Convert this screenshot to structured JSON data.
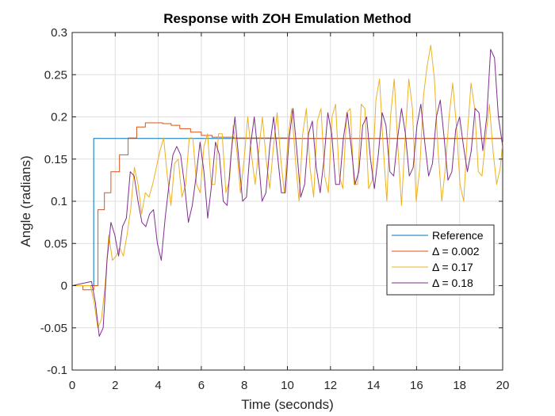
{
  "chart_data": {
    "type": "line",
    "title": "Response with ZOH Emulation Method",
    "xlabel": "Time (seconds)",
    "ylabel": "Angle (radians)",
    "xlim": [
      0,
      20
    ],
    "ylim": [
      -0.1,
      0.3
    ],
    "xticks": [
      0,
      2,
      4,
      6,
      8,
      10,
      12,
      14,
      16,
      18,
      20
    ],
    "yticks": [
      -0.1,
      -0.05,
      0,
      0.05,
      0.1,
      0.15,
      0.2,
      0.25,
      0.3
    ],
    "grid": true,
    "legend_position": "lower-right",
    "series": [
      {
        "name": "Reference",
        "color": "#0072BD",
        "step": true,
        "points": [
          [
            0,
            0
          ],
          [
            1,
            0
          ],
          [
            1,
            0.1745
          ],
          [
            20,
            0.1745
          ]
        ]
      },
      {
        "name": "Δ = 0.002",
        "color": "#D95319",
        "step": true,
        "points": [
          [
            0,
            0
          ],
          [
            0.5,
            -0.005
          ],
          [
            1.0,
            0.0
          ],
          [
            1.2,
            0.09
          ],
          [
            1.5,
            0.11
          ],
          [
            1.8,
            0.135
          ],
          [
            2.2,
            0.155
          ],
          [
            2.6,
            0.175
          ],
          [
            3.0,
            0.188
          ],
          [
            3.4,
            0.193
          ],
          [
            3.8,
            0.193
          ],
          [
            4.2,
            0.192
          ],
          [
            4.6,
            0.19
          ],
          [
            5.0,
            0.186
          ],
          [
            5.5,
            0.182
          ],
          [
            6.0,
            0.178
          ],
          [
            6.5,
            0.176
          ],
          [
            7.5,
            0.175
          ],
          [
            10,
            0.1745
          ],
          [
            20,
            0.1745
          ]
        ]
      },
      {
        "name": "Δ = 0.17",
        "color": "#EDB120",
        "step": false,
        "points": [
          [
            0,
            0
          ],
          [
            0.85,
            0.0
          ],
          [
            1.02,
            -0.02
          ],
          [
            1.19,
            -0.05
          ],
          [
            1.36,
            -0.04
          ],
          [
            1.53,
            0.0
          ],
          [
            1.7,
            0.06
          ],
          [
            1.87,
            0.03
          ],
          [
            2.04,
            0.035
          ],
          [
            2.21,
            0.045
          ],
          [
            2.38,
            0.035
          ],
          [
            2.55,
            0.06
          ],
          [
            2.72,
            0.09
          ],
          [
            2.89,
            0.14
          ],
          [
            3.06,
            0.12
          ],
          [
            3.23,
            0.085
          ],
          [
            3.4,
            0.11
          ],
          [
            3.57,
            0.105
          ],
          [
            3.74,
            0.12
          ],
          [
            3.91,
            0.14
          ],
          [
            4.08,
            0.16
          ],
          [
            4.25,
            0.175
          ],
          [
            4.42,
            0.13
          ],
          [
            4.59,
            0.095
          ],
          [
            4.76,
            0.145
          ],
          [
            4.93,
            0.15
          ],
          [
            5.1,
            0.105
          ],
          [
            5.27,
            0.12
          ],
          [
            5.44,
            0.175
          ],
          [
            5.61,
            0.175
          ],
          [
            5.78,
            0.12
          ],
          [
            5.95,
            0.11
          ],
          [
            6.12,
            0.165
          ],
          [
            6.29,
            0.18
          ],
          [
            6.46,
            0.12
          ],
          [
            6.63,
            0.12
          ],
          [
            6.8,
            0.18
          ],
          [
            6.97,
            0.18
          ],
          [
            7.14,
            0.11
          ],
          [
            7.31,
            0.125
          ],
          [
            7.48,
            0.19
          ],
          [
            7.65,
            0.16
          ],
          [
            7.82,
            0.11
          ],
          [
            7.99,
            0.15
          ],
          [
            8.16,
            0.2
          ],
          [
            8.33,
            0.155
          ],
          [
            8.5,
            0.12
          ],
          [
            8.67,
            0.16
          ],
          [
            8.84,
            0.2
          ],
          [
            9.01,
            0.15
          ],
          [
            9.18,
            0.115
          ],
          [
            9.35,
            0.165
          ],
          [
            9.52,
            0.205
          ],
          [
            9.69,
            0.15
          ],
          [
            9.86,
            0.11
          ],
          [
            10.03,
            0.175
          ],
          [
            10.2,
            0.21
          ],
          [
            10.37,
            0.15
          ],
          [
            10.54,
            0.1
          ],
          [
            10.71,
            0.18
          ],
          [
            10.88,
            0.21
          ],
          [
            11.05,
            0.14
          ],
          [
            11.22,
            0.105
          ],
          [
            11.39,
            0.195
          ],
          [
            11.56,
            0.21
          ],
          [
            11.73,
            0.13
          ],
          [
            11.9,
            0.11
          ],
          [
            12.07,
            0.2
          ],
          [
            12.24,
            0.215
          ],
          [
            12.41,
            0.13
          ],
          [
            12.58,
            0.115
          ],
          [
            12.75,
            0.205
          ],
          [
            12.92,
            0.21
          ],
          [
            13.09,
            0.12
          ],
          [
            13.26,
            0.12
          ],
          [
            13.43,
            0.215
          ],
          [
            13.6,
            0.21
          ],
          [
            13.77,
            0.115
          ],
          [
            13.94,
            0.125
          ],
          [
            14.11,
            0.22
          ],
          [
            14.28,
            0.245
          ],
          [
            14.45,
            0.165
          ],
          [
            14.62,
            0.1
          ],
          [
            14.79,
            0.2
          ],
          [
            14.96,
            0.245
          ],
          [
            15.13,
            0.165
          ],
          [
            15.3,
            0.095
          ],
          [
            15.47,
            0.175
          ],
          [
            15.64,
            0.245
          ],
          [
            15.81,
            0.21
          ],
          [
            15.98,
            0.1
          ],
          [
            16.15,
            0.14
          ],
          [
            16.32,
            0.225
          ],
          [
            16.49,
            0.26
          ],
          [
            16.66,
            0.285
          ],
          [
            16.83,
            0.245
          ],
          [
            17.0,
            0.16
          ],
          [
            17.17,
            0.1
          ],
          [
            17.34,
            0.14
          ],
          [
            17.51,
            0.2
          ],
          [
            17.68,
            0.24
          ],
          [
            17.85,
            0.19
          ],
          [
            18.02,
            0.12
          ],
          [
            18.19,
            0.1
          ],
          [
            18.36,
            0.18
          ],
          [
            18.53,
            0.24
          ],
          [
            18.7,
            0.21
          ],
          [
            18.87,
            0.135
          ],
          [
            19.04,
            0.13
          ],
          [
            19.21,
            0.175
          ],
          [
            19.38,
            0.215
          ],
          [
            19.55,
            0.16
          ],
          [
            19.72,
            0.12
          ],
          [
            19.89,
            0.14
          ],
          [
            20,
            0.17
          ]
        ]
      },
      {
        "name": "Δ = 0.18",
        "color": "#7E2F8E",
        "step": false,
        "points": [
          [
            0,
            0
          ],
          [
            0.9,
            0.005
          ],
          [
            1.08,
            -0.02
          ],
          [
            1.26,
            -0.06
          ],
          [
            1.44,
            -0.05
          ],
          [
            1.62,
            0.03
          ],
          [
            1.8,
            0.075
          ],
          [
            1.98,
            0.06
          ],
          [
            2.16,
            0.035
          ],
          [
            2.34,
            0.07
          ],
          [
            2.52,
            0.08
          ],
          [
            2.7,
            0.135
          ],
          [
            2.88,
            0.13
          ],
          [
            3.06,
            0.1
          ],
          [
            3.24,
            0.075
          ],
          [
            3.42,
            0.07
          ],
          [
            3.6,
            0.085
          ],
          [
            3.78,
            0.09
          ],
          [
            3.96,
            0.05
          ],
          [
            4.14,
            0.03
          ],
          [
            4.32,
            0.08
          ],
          [
            4.5,
            0.12
          ],
          [
            4.68,
            0.155
          ],
          [
            4.86,
            0.165
          ],
          [
            5.04,
            0.155
          ],
          [
            5.22,
            0.12
          ],
          [
            5.4,
            0.075
          ],
          [
            5.58,
            0.095
          ],
          [
            5.76,
            0.13
          ],
          [
            5.94,
            0.17
          ],
          [
            6.12,
            0.135
          ],
          [
            6.3,
            0.08
          ],
          [
            6.48,
            0.12
          ],
          [
            6.66,
            0.17
          ],
          [
            6.84,
            0.155
          ],
          [
            7.02,
            0.1
          ],
          [
            7.2,
            0.095
          ],
          [
            7.38,
            0.155
          ],
          [
            7.56,
            0.2
          ],
          [
            7.74,
            0.15
          ],
          [
            7.92,
            0.1
          ],
          [
            8.1,
            0.105
          ],
          [
            8.28,
            0.165
          ],
          [
            8.46,
            0.2
          ],
          [
            8.64,
            0.155
          ],
          [
            8.82,
            0.1
          ],
          [
            9.0,
            0.11
          ],
          [
            9.18,
            0.165
          ],
          [
            9.36,
            0.2
          ],
          [
            9.54,
            0.155
          ],
          [
            9.72,
            0.11
          ],
          [
            9.9,
            0.11
          ],
          [
            10.08,
            0.175
          ],
          [
            10.26,
            0.21
          ],
          [
            10.44,
            0.16
          ],
          [
            10.62,
            0.105
          ],
          [
            10.8,
            0.12
          ],
          [
            10.98,
            0.18
          ],
          [
            11.16,
            0.195
          ],
          [
            11.34,
            0.14
          ],
          [
            11.52,
            0.11
          ],
          [
            11.7,
            0.15
          ],
          [
            11.88,
            0.205
          ],
          [
            12.06,
            0.18
          ],
          [
            12.24,
            0.12
          ],
          [
            12.42,
            0.12
          ],
          [
            12.6,
            0.175
          ],
          [
            12.78,
            0.205
          ],
          [
            12.96,
            0.165
          ],
          [
            13.14,
            0.12
          ],
          [
            13.32,
            0.135
          ],
          [
            13.5,
            0.19
          ],
          [
            13.68,
            0.2
          ],
          [
            13.86,
            0.15
          ],
          [
            14.04,
            0.115
          ],
          [
            14.22,
            0.155
          ],
          [
            14.4,
            0.205
          ],
          [
            14.58,
            0.19
          ],
          [
            14.76,
            0.135
          ],
          [
            14.94,
            0.13
          ],
          [
            15.12,
            0.175
          ],
          [
            15.3,
            0.21
          ],
          [
            15.48,
            0.18
          ],
          [
            15.66,
            0.13
          ],
          [
            15.84,
            0.14
          ],
          [
            16.02,
            0.19
          ],
          [
            16.2,
            0.215
          ],
          [
            16.38,
            0.17
          ],
          [
            16.56,
            0.13
          ],
          [
            16.74,
            0.145
          ],
          [
            16.92,
            0.2
          ],
          [
            17.1,
            0.22
          ],
          [
            17.28,
            0.175
          ],
          [
            17.46,
            0.125
          ],
          [
            17.64,
            0.135
          ],
          [
            17.82,
            0.185
          ],
          [
            18.0,
            0.2
          ],
          [
            18.18,
            0.165
          ],
          [
            18.36,
            0.135
          ],
          [
            18.54,
            0.16
          ],
          [
            18.72,
            0.21
          ],
          [
            18.9,
            0.205
          ],
          [
            19.08,
            0.16
          ],
          [
            19.26,
            0.2
          ],
          [
            19.44,
            0.28
          ],
          [
            19.62,
            0.27
          ],
          [
            19.8,
            0.2
          ],
          [
            20,
            0.165
          ]
        ]
      }
    ]
  }
}
